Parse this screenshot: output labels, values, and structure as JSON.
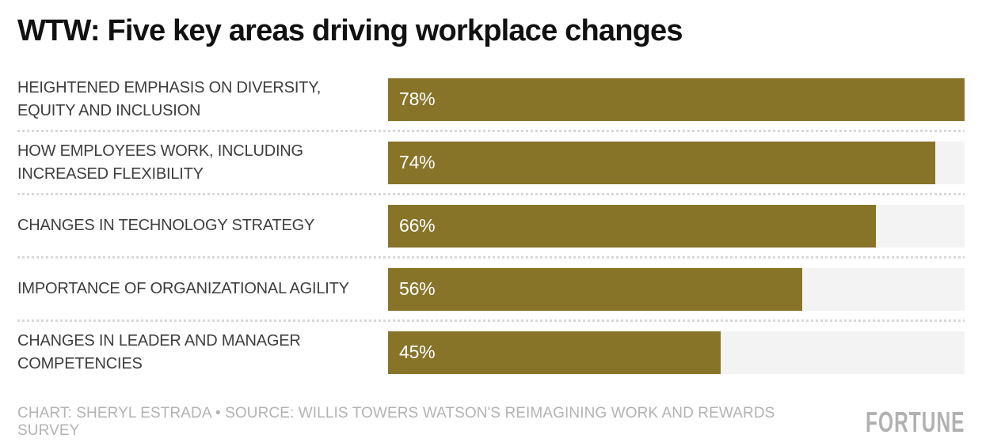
{
  "title": "WTW: Five key areas driving workplace changes",
  "chart_data": {
    "type": "bar",
    "orientation": "horizontal",
    "title": "WTW: Five key areas driving workplace changes",
    "categories": [
      "HEIGHTENED EMPHASIS ON DIVERSITY, EQUITY AND INCLUSION",
      "HOW EMPLOYEES WORK, INCLUDING INCREASED FLEXIBILITY",
      "CHANGES IN TECHNOLOGY STRATEGY",
      "IMPORTANCE OF ORGANIZATIONAL AGILITY",
      "CHANGES IN LEADER AND MANAGER COMPETENCIES"
    ],
    "values": [
      78,
      74,
      66,
      56,
      45
    ],
    "value_labels": [
      "78%",
      "74%",
      "66%",
      "56%",
      "45%"
    ],
    "unit": "%",
    "xlabel": "",
    "ylabel": "",
    "xlim": [
      0,
      78
    ],
    "grid": "off",
    "legend": "none",
    "bar_color": "#877429",
    "track_color": "#f3f3f3",
    "value_label_position": "inside-left"
  },
  "rows": [
    {
      "label": "HEIGHTENED EMPHASIS ON DIVERSITY,\nEQUITY AND INCLUSION",
      "value": 78,
      "value_label": "78%"
    },
    {
      "label": "HOW EMPLOYEES WORK, INCLUDING\nINCREASED FLEXIBILITY",
      "value": 74,
      "value_label": "74%"
    },
    {
      "label": "CHANGES IN TECHNOLOGY STRATEGY",
      "value": 66,
      "value_label": "66%"
    },
    {
      "label": "IMPORTANCE OF ORGANIZATIONAL AGILITY",
      "value": 56,
      "value_label": "56%"
    },
    {
      "label": "CHANGES IN LEADER AND MANAGER\nCOMPETENCIES",
      "value": 45,
      "value_label": "45%"
    }
  ],
  "footer": {
    "credits": "CHART: SHERYL ESTRADA • SOURCE: WILLIS TOWERS WATSON'S REIMAGINING WORK AND REWARDS SURVEY",
    "brand": "FORTUNE"
  },
  "colors": {
    "background": "#ffffff",
    "title_text": "#111111",
    "label_text": "#3e3e3e",
    "bar": "#877429",
    "bar_track": "#f3f3f3",
    "separator_dots": "#d8d8d8",
    "value_text": "#ffffff",
    "credits_text": "#b3b3b3",
    "brand_text": "#b1b1b1"
  }
}
